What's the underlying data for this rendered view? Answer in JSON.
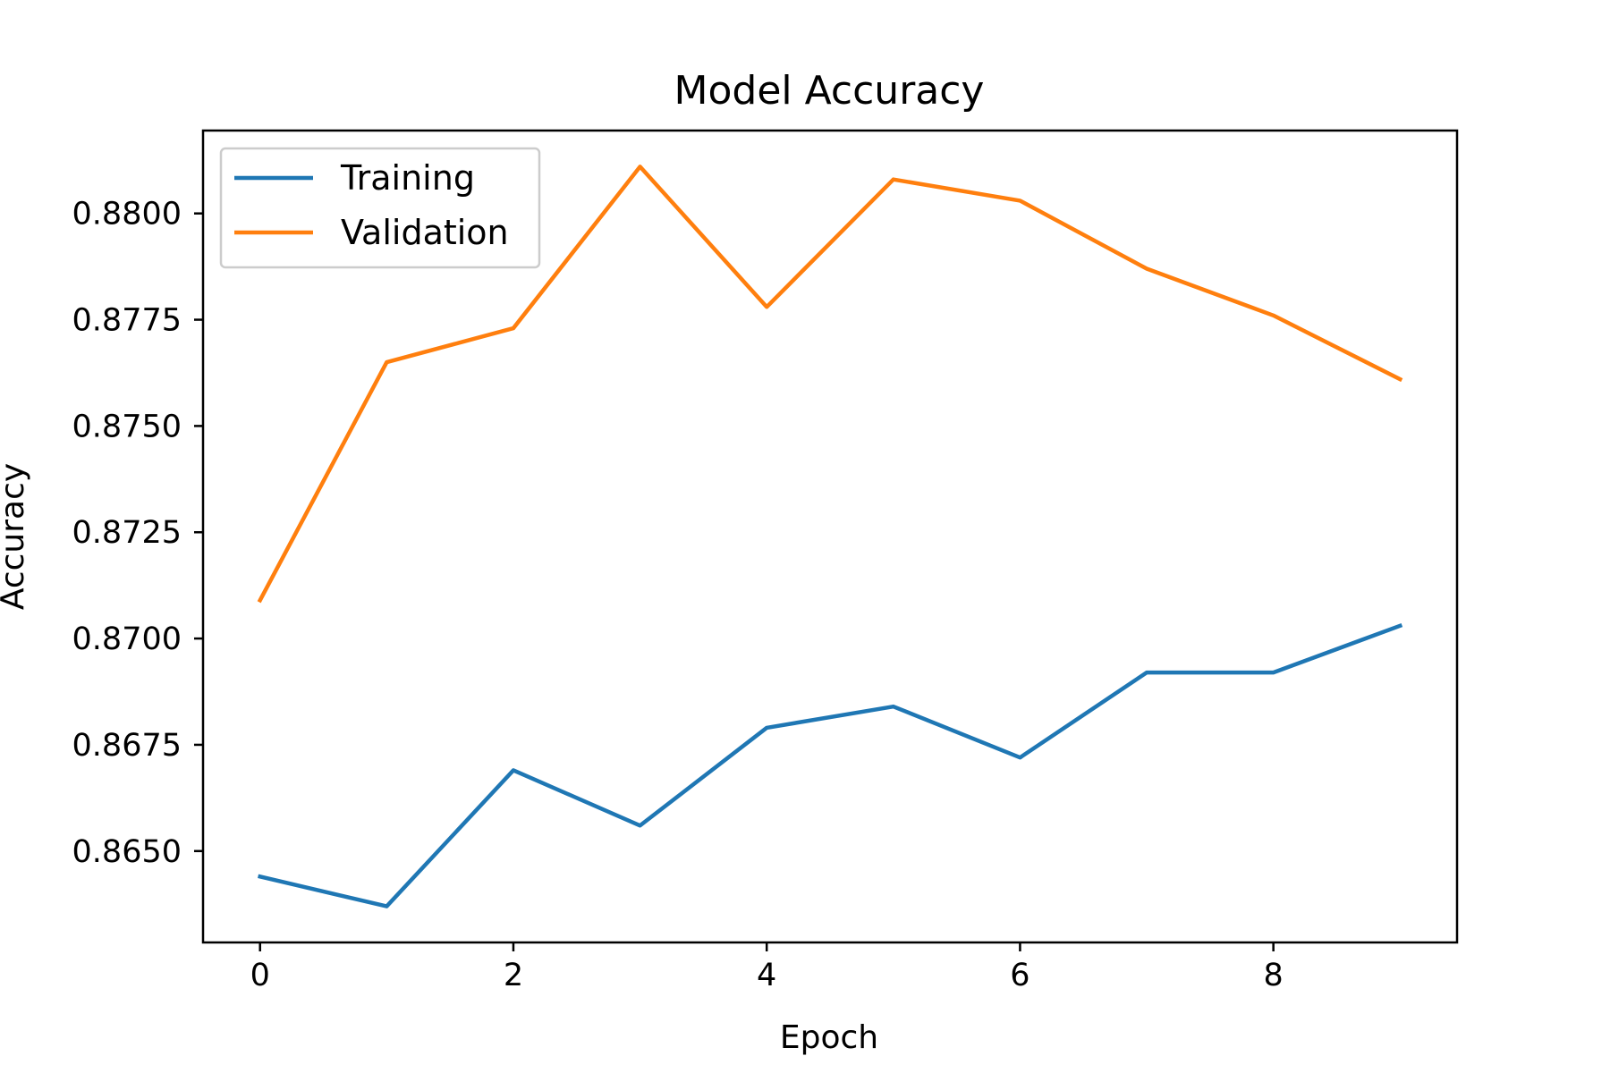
{
  "chart_data": {
    "type": "line",
    "title": "Model Accuracy",
    "xlabel": "Epoch",
    "ylabel": "Accuracy",
    "x": [
      0,
      1,
      2,
      3,
      4,
      5,
      6,
      7,
      8,
      9
    ],
    "xlim": [
      -0.45,
      9.45
    ],
    "ylim": [
      0.86285,
      0.88195
    ],
    "xticks": [
      0,
      2,
      4,
      6,
      8
    ],
    "yticks": [
      0.865,
      0.8675,
      0.87,
      0.8725,
      0.875,
      0.8775,
      0.88
    ],
    "grid": false,
    "legend_position": "upper-left",
    "series": [
      {
        "name": "Training",
        "color": "#1f77b4",
        "values": [
          0.8644,
          0.8637,
          0.8669,
          0.8656,
          0.8679,
          0.8684,
          0.8672,
          0.8692,
          0.8692,
          0.8703
        ]
      },
      {
        "name": "Validation",
        "color": "#ff7f0e",
        "values": [
          0.8709,
          0.8765,
          0.8773,
          0.8811,
          0.8778,
          0.8808,
          0.8803,
          0.8787,
          0.8776,
          0.8761
        ]
      }
    ]
  }
}
